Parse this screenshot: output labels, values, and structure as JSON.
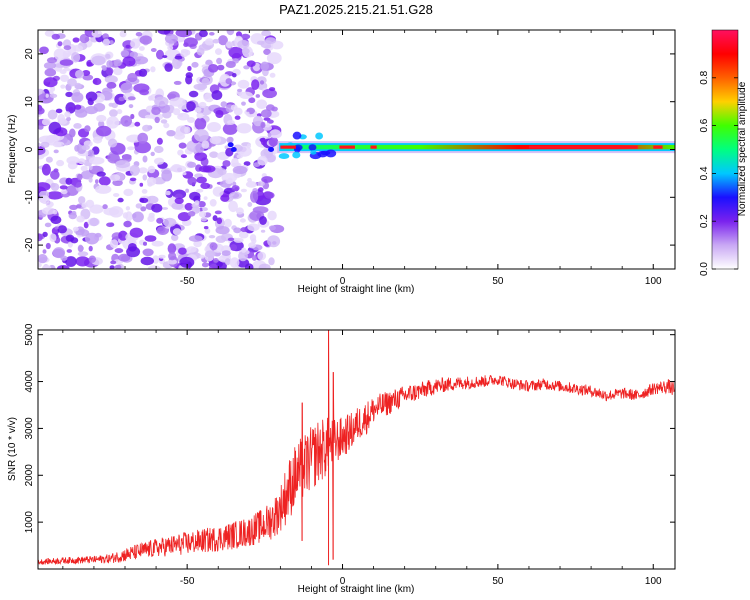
{
  "title": "PAZ1.2025.215.21.51.G28",
  "colors": {
    "snr_line": "#ee2222",
    "noise_purple": "#7a22ee",
    "frame": "#000000"
  },
  "chart_data": [
    {
      "type": "heatmap",
      "name": "spectrogram",
      "xlabel": "Height of straight line (km)",
      "ylabel": "Frequency (Hz)",
      "xlim": [
        -98,
        107
      ],
      "ylim": [
        -25,
        25
      ],
      "xticks": [
        -50,
        0,
        50,
        100
      ],
      "xtick_labels": [
        "-50",
        "0",
        "50",
        "100"
      ],
      "yticks": [
        20,
        10,
        0,
        -10,
        -20
      ],
      "ytick_labels": [
        "20",
        "10",
        "0",
        "-10",
        "-20"
      ],
      "colorbar": {
        "label": "Normalized spectral amplitude",
        "range": [
          0,
          1
        ],
        "ticks": [
          0.0,
          0.2,
          0.4,
          0.6,
          0.8
        ],
        "tick_labels": [
          "0.0",
          "0.2",
          "0.4",
          "0.6",
          "0.8"
        ],
        "colormap": [
          "#ffffff",
          "#c9a8f4",
          "#7a22ee",
          "#1a10ff",
          "#00c8ff",
          "#00ff80",
          "#40ff00",
          "#ffd000",
          "#ff6000",
          "#ff0000",
          "#ff1060"
        ]
      },
      "features": {
        "noise_region_x": [
          -98,
          -21
        ],
        "signal_start_x": -21,
        "signal_frequency_hz": 0.5,
        "signal_peak_region_x": [
          60,
          95
        ]
      }
    },
    {
      "type": "line",
      "name": "snr",
      "xlabel": "Height of straight line (km)",
      "ylabel": "SNR (10 * v/v)",
      "xlim": [
        -98,
        107
      ],
      "ylim": [
        0,
        5100
      ],
      "xticks": [
        -50,
        0,
        50,
        100
      ],
      "xtick_labels": [
        "-50",
        "0",
        "50",
        "100"
      ],
      "yticks": [
        1000,
        2000,
        3000,
        4000,
        5000
      ],
      "ytick_labels": [
        "1000",
        "2000",
        "3000",
        "4000",
        "5000"
      ],
      "series": [
        {
          "x": [
            -98,
            -90,
            -80,
            -75,
            -70,
            -65,
            -60,
            -55,
            -50,
            -45,
            -40,
            -35,
            -30,
            -25,
            -22,
            -20,
            -18,
            -15,
            -12,
            -10,
            -8,
            -5,
            -3,
            0,
            3,
            5,
            8,
            10,
            15,
            20,
            25,
            30,
            35,
            40,
            45,
            50,
            55,
            60,
            65,
            70,
            75,
            80,
            85,
            90,
            95,
            100,
            105,
            107
          ],
          "y": [
            150,
            180,
            200,
            220,
            300,
            380,
            450,
            500,
            550,
            600,
            650,
            720,
            800,
            950,
            1100,
            1300,
            1600,
            2000,
            2200,
            2350,
            2500,
            2600,
            2700,
            2800,
            2950,
            3100,
            3250,
            3400,
            3550,
            3700,
            3800,
            3900,
            3950,
            3980,
            4000,
            4050,
            3950,
            3900,
            3950,
            3900,
            3850,
            3800,
            3700,
            3750,
            3700,
            3850,
            3900,
            3800
          ],
          "noise_amplitude": [
            60,
            70,
            80,
            100,
            150,
            180,
            200,
            220,
            250,
            260,
            280,
            300,
            320,
            380,
            450,
            500,
            650,
            700,
            700,
            700,
            700,
            650,
            500,
            450,
            400,
            380,
            350,
            300,
            260,
            220,
            190,
            170,
            150,
            140,
            130,
            120,
            120,
            120,
            120,
            120,
            120,
            120,
            120,
            120,
            120,
            130,
            150,
            170
          ],
          "spikes": [
            {
              "x": -13,
              "y_min": 600,
              "y_max": 3550
            },
            {
              "x": -4.5,
              "y_min": 80,
              "y_max": 5100
            },
            {
              "x": -3,
              "y_min": 200,
              "y_max": 4200
            }
          ]
        }
      ]
    }
  ]
}
